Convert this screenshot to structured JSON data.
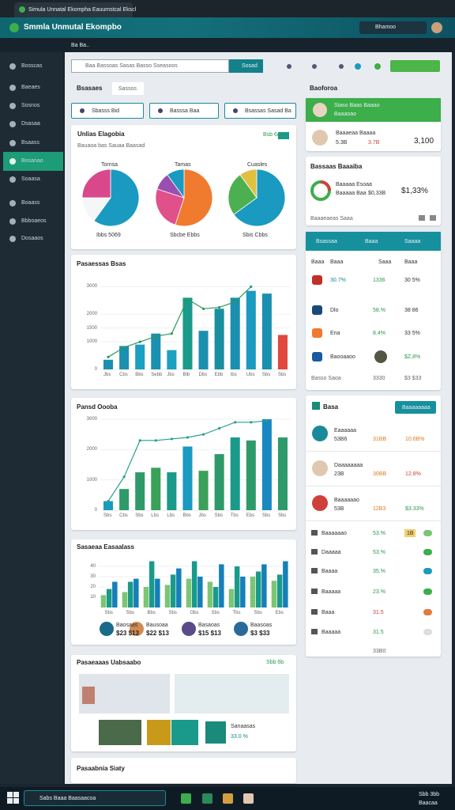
{
  "window": {
    "tab_title": "Simula Unnatal Ekompha Eauumstcal Ekscl",
    "app_title": "Smmla Unmutal Ekompbo",
    "user": "Bhamoo",
    "breadcrumb": "Ba Ba.."
  },
  "sidebar": {
    "items": [
      "Bosscas",
      "Baeaes",
      "Sosnos",
      "Dsasaa",
      "Bsaass",
      "Bosanao",
      "Soaasa",
      "Boaass",
      "Bbboaeos",
      "Dosaaos"
    ],
    "active": 5
  },
  "toolbar": {
    "search": "Baa Bassoas Sasas Basso Sseasoos",
    "search_button": "Sosad",
    "tabs": [
      "Bsasaes",
      "Sassos"
    ],
    "filters": [
      "Sbasss Bid",
      "Basssa Baa",
      "Bsassas Sasad Ba"
    ]
  },
  "chart_data": [
    {
      "type": "pie",
      "title": "Unlias Elagobia",
      "subtitle": "Bauaoa bas Sauaa Baasad",
      "badge": "Bsb 6a",
      "pies": [
        {
          "title": "Tornsa",
          "caption": "Ibbs 5069",
          "values": [
            60,
            15,
            25
          ],
          "colors": [
            "#1a9ac0",
            "#f4f6f8",
            "#d9488a"
          ]
        },
        {
          "title": "Tamas",
          "caption": "Sbcbe Ebbs",
          "values": [
            55,
            25,
            10,
            10
          ],
          "colors": [
            "#f07a2e",
            "#e0508a",
            "#9a4fb0",
            "#1a9ac0"
          ]
        },
        {
          "title": "Cuasles",
          "caption": "Sbis Cbbs",
          "values": [
            65,
            25,
            10
          ],
          "colors": [
            "#1a9ac0",
            "#4db050",
            "#e0c040"
          ]
        }
      ]
    },
    {
      "type": "bar",
      "title": "Pasaessas Bsas",
      "categories": [
        "Jbs",
        "Cbs",
        "Bbs",
        "Sebb",
        "Jbs",
        "Blb",
        "Dbs",
        "Ebb",
        "Ibs",
        "Ubs",
        "Sbs",
        "Sbs"
      ],
      "values": [
        350,
        850,
        900,
        1300,
        700,
        2600,
        1400,
        2200,
        2600,
        2850,
        2750,
        1250
      ],
      "colors": [
        "#1b8fb0",
        "#1b8fb0",
        "#1aa0c0",
        "#1b8fb0",
        "#1aa0c0",
        "#1a9a8a",
        "#1b8fb0",
        "#1a8fa0",
        "#1b8fb0",
        "#1a9ac0",
        "#1b8fb0",
        "#e0473d"
      ],
      "line": {
        "values": [
          450,
          800,
          1000,
          1200,
          1300,
          2550,
          2200,
          2250,
          2450,
          3000,
          null,
          null
        ],
        "color": "#2a9a5a"
      },
      "ylim": [
        0,
        3500
      ],
      "yticks": [
        0,
        1000,
        1500,
        2000,
        3000
      ]
    },
    {
      "type": "bar",
      "title": "Pansd Oooba",
      "categories": [
        "Sbs",
        "Cbs",
        "Sbs",
        "Lbs",
        "Lbs",
        "Bbs",
        "Jbs",
        "Sbs",
        "Tbs",
        "Ebs",
        "Sbs",
        "Sbs"
      ],
      "values": [
        300,
        700,
        1250,
        1400,
        1250,
        2100,
        1300,
        1850,
        2400,
        2300,
        3000,
        2400
      ],
      "colors": [
        "#1a9ac0",
        "#2e9a6a",
        "#2e9a6a",
        "#3aa05a",
        "#1a9a8a",
        "#1a9ac0",
        "#3aa05a",
        "#2e9a6a",
        "#1a9a8a",
        "#2e9a6a",
        "#1a88c0",
        "#2e9a6a"
      ],
      "line": {
        "values": [
          300,
          1100,
          2300,
          2300,
          2350,
          2400,
          2500,
          2700,
          2900,
          2900,
          2950,
          null
        ],
        "color": "#2aa08a"
      },
      "ylim": [
        0,
        3000
      ],
      "yticks": [
        0,
        1000,
        2000,
        3000
      ]
    },
    {
      "type": "bar",
      "title": "Sasaeaa Easaalass",
      "categories": [
        "Sbs",
        "Sbs",
        "Bbs",
        "Sbs",
        "Obs",
        "Sbs",
        "Tbs",
        "Sbs",
        "Ebs"
      ],
      "series": [
        {
          "color": "#7cc576",
          "values": [
            12,
            15,
            20,
            22,
            28,
            25,
            18,
            30,
            26
          ]
        },
        {
          "color": "#1a9a8a",
          "values": [
            18,
            25,
            45,
            32,
            45,
            20,
            40,
            35,
            32
          ]
        },
        {
          "color": "#1580b8",
          "values": [
            25,
            28,
            28,
            38,
            30,
            42,
            30,
            42,
            45
          ]
        }
      ],
      "ylim": [
        0,
        50
      ],
      "yticks": [
        10,
        20,
        30,
        40
      ],
      "legend_items": [
        {
          "name": "Baosaas",
          "value": "$23 $13"
        },
        {
          "name": "Bausoaa",
          "value": "$22 $13"
        },
        {
          "name": "Basaoas",
          "value": "$15 $13"
        },
        {
          "name": "Baasoas",
          "value": "$3 $33"
        }
      ]
    }
  ],
  "map_card": {
    "title": "Pasaeaaas Uabsaabo",
    "badge": "Sbb 6b",
    "caption": "Sanaasas",
    "value": "33.0 %"
  },
  "activity_card": {
    "title": "Pasaabnia Siaty"
  },
  "profile": {
    "title": "Baoforoa",
    "header_name": "Siaso Baas Baaao",
    "header_sub": "Baaaoao",
    "name": "Baaaeaa Baaaa",
    "a": "5.3B",
    "b": "3.7B",
    "value": "3,100"
  },
  "progress": {
    "title": "Bassaas Baaaiba",
    "l1": "Baaaaa Esoaa",
    "l2": "Baaaaa Baa",
    "v1": "$0,33B",
    "big": "$1,33%",
    "foot": "Baaaeaeas Saaa"
  },
  "table": {
    "headers": [
      "Bsassaa",
      "Baaa",
      "Saaaa"
    ],
    "columns": [
      "Baaa",
      "Baaa",
      "Saaa",
      "Baaa"
    ],
    "rows": [
      [
        "30.7%",
        "1336",
        "30 5%"
      ],
      [
        "Dlo",
        "58.%",
        "38 86"
      ],
      [
        "Ena",
        "8.4%",
        "33 5%"
      ],
      [
        "Baooaaoo",
        "$Z,8%"
      ]
    ],
    "foot": [
      "Basso Saoa",
      "3330",
      "$3 $33"
    ]
  },
  "list": {
    "title": "Basa",
    "button": "Baaaaaaaa",
    "people": [
      {
        "name": "Eaaaaaa",
        "a": "53B6",
        "b": "31BB",
        "c": "10.6B%"
      },
      {
        "name": "Daaaaaaaa",
        "a": "23B",
        "b": "30BB",
        "c": "12.8%"
      },
      {
        "name": "Baaaaaao",
        "a": "53B",
        "b": "12B3",
        "c": "$3.33%"
      }
    ],
    "rows": [
      {
        "name": "Baaaaaao",
        "a": "53.%",
        "b": "1B"
      },
      {
        "name": "Daaaaa",
        "a": "53.%"
      },
      {
        "name": "Baaaa",
        "a": "35.%"
      },
      {
        "name": "Baaaaa",
        "a": "23.%"
      },
      {
        "name": "Baaa",
        "a": "31.5"
      },
      {
        "name": "Baaaaa",
        "a": "31.5"
      }
    ],
    "total": "33B0"
  },
  "taskbar": {
    "search": "Sabs Baaa Baasaacoa",
    "time": "Sbb 3bb",
    "date": "Baacaa"
  }
}
